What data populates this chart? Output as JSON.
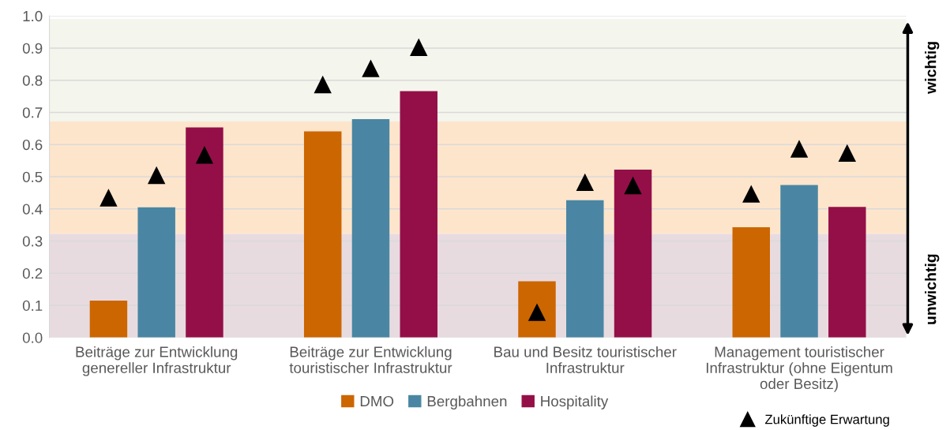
{
  "chart_data": {
    "type": "bar",
    "categories": [
      "Beiträge zur Entwicklung\ngenereller Infrastruktur",
      "Beiträge zur Entwicklung\ntouristischer Infrastruktur",
      "Bau und Besitz touristischer\nInfrastruktur",
      "Management touristischer\nInfrastruktur (ohne Eigentum\noder Besitz)"
    ],
    "series": [
      {
        "name": "DMO",
        "color": "#cc6600",
        "values": [
          0.115,
          0.641,
          0.175,
          0.343
        ]
      },
      {
        "name": "Bergbahnen",
        "color": "#4a86a3",
        "values": [
          0.405,
          0.679,
          0.427,
          0.474
        ]
      },
      {
        "name": "Hospitality",
        "color": "#940f48",
        "values": [
          0.653,
          0.766,
          0.522,
          0.406
        ]
      },
      {
        "name": "Zukünftige Erwartung",
        "type": "scatter",
        "color": "#000000",
        "marker": "triangle",
        "x": [
          "Beiträge zur Entwicklung\ngenereller Infrastruktur",
          "Beiträge zur Entwicklung\ngenereller Infrastruktur",
          "Beiträge zur Entwicklung\ngenereller Infrastruktur",
          "Beiträge zur Entwicklung\ntouristischer Infrastruktur",
          "Beiträge zur Entwicklung\ntouristischer Infrastruktur",
          "Beiträge zur Entwicklung\ntouristischer Infrastruktur",
          "Bau und Besitz touristischer\nInfrastruktur",
          "Bau und Besitz touristischer\nInfrastruktur",
          "Bau und Besitz touristischer\nInfrastruktur",
          "Management touristischer\nInfrastruktur (ohne Eigentum\noder Besitz)",
          "Management touristischer\nInfrastruktur (ohne Eigentum\noder Besitz)",
          "Management touristischer\nInfrastruktur (ohne Eigentum\noder Besitz)"
        ],
        "values": [
          0.435,
          0.505,
          0.568,
          0.787,
          0.837,
          0.903,
          0.079,
          0.483,
          0.473,
          0.447,
          0.587,
          0.574
        ]
      }
    ],
    "ylim": [
      0,
      1.0
    ],
    "yticks": [
      {
        "value": 0,
        "label": "0.0"
      },
      0.1,
      0.2,
      0.3,
      0.4,
      0.5,
      0.6,
      0.7,
      0.8,
      0.9,
      {
        "value": 1,
        "label": "1.0"
      }
    ],
    "grid": "y",
    "legend": "bottom",
    "bands": [
      {
        "axis": "y",
        "from": 0,
        "to": 0.323,
        "color": "#e8dbe0"
      },
      {
        "axis": "y",
        "from": 0.323,
        "to": 0.672,
        "color": "#fde5cc"
      },
      {
        "axis": "y",
        "from": 0.672,
        "to": 0.99,
        "color": "#f4f5ec"
      }
    ],
    "annotations": [
      "wichtig",
      "unwichtig"
    ]
  }
}
